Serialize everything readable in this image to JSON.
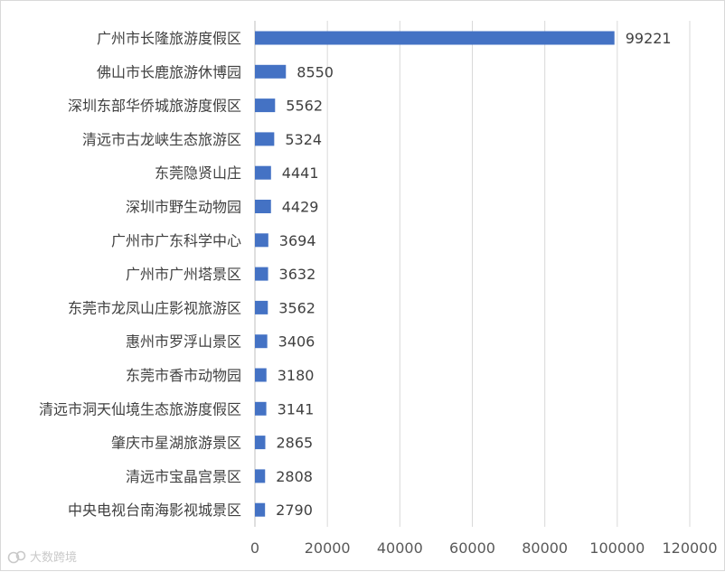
{
  "chart_data": {
    "type": "bar",
    "orientation": "horizontal",
    "categories": [
      "广州市长隆旅游度假区",
      "佛山市长鹿旅游休博园",
      "深圳东部华侨城旅游度假区",
      "清远市古龙峡生态旅游区",
      "东莞隐贤山庄",
      "深圳市野生动物园",
      "广州市广东科学中心",
      "广州市广州塔景区",
      "东莞市龙凤山庄影视旅游区",
      "惠州市罗浮山景区",
      "东莞市香市动物园",
      "清远市洞天仙境生态旅游度假区",
      "肇庆市星湖旅游景区",
      "清远市宝晶宫景区",
      "中央电视台南海影视城景区"
    ],
    "values": [
      99221,
      8550,
      5562,
      5324,
      4441,
      4429,
      3694,
      3632,
      3562,
      3406,
      3180,
      3141,
      2865,
      2808,
      2790
    ],
    "xlim": [
      0,
      120000
    ],
    "xticks": [
      "0",
      "20000",
      "40000",
      "60000",
      "80000",
      "100000",
      "120000"
    ],
    "grid": "vertical",
    "bar_color": "#4472c4",
    "data_labels": true,
    "title": "",
    "xlabel": "",
    "ylabel": ""
  },
  "watermark": {
    "text": "大数跨境",
    "icon": "brand-logo-icon",
    "color": "#c9c9c9"
  }
}
